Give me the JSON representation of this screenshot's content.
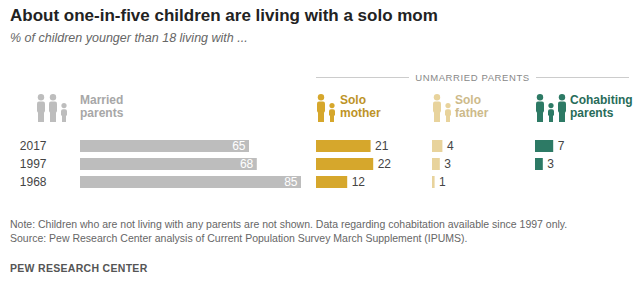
{
  "chart_data": {
    "type": "bar",
    "orientation": "horizontal",
    "title": "About one-in-five children are living with a solo mom",
    "subtitle": "% of children younger than 18 living with ...",
    "categories": [
      "2017",
      "1997",
      "1968"
    ],
    "series": [
      {
        "name": "Married parents",
        "color": "#bdbdbd",
        "values": [
          65,
          68,
          85
        ]
      },
      {
        "name": "Solo mother",
        "color": "#d6a72c",
        "values": [
          21,
          22,
          12
        ]
      },
      {
        "name": "Solo father",
        "color": "#e8d39c",
        "values": [
          4,
          3,
          1
        ]
      },
      {
        "name": "Cohabiting parents",
        "color": "#2d7a65",
        "values": [
          7,
          3,
          null
        ]
      }
    ],
    "annotations": [
      {
        "text": "UNMARRIED PARENTS",
        "series": [
          "Solo mother",
          "Solo father",
          "Cohabiting parents"
        ]
      }
    ],
    "data_labels": true,
    "tick_labels": "y",
    "note": "Note: Children who are not living with any parents are not shown. Data regarding cohabitation available since 1997 only.",
    "source": "Source: Pew Research Center analysis of Current Population Survey March Supplement (IPUMS).",
    "credit": "PEW RESEARCH CENTER"
  }
}
